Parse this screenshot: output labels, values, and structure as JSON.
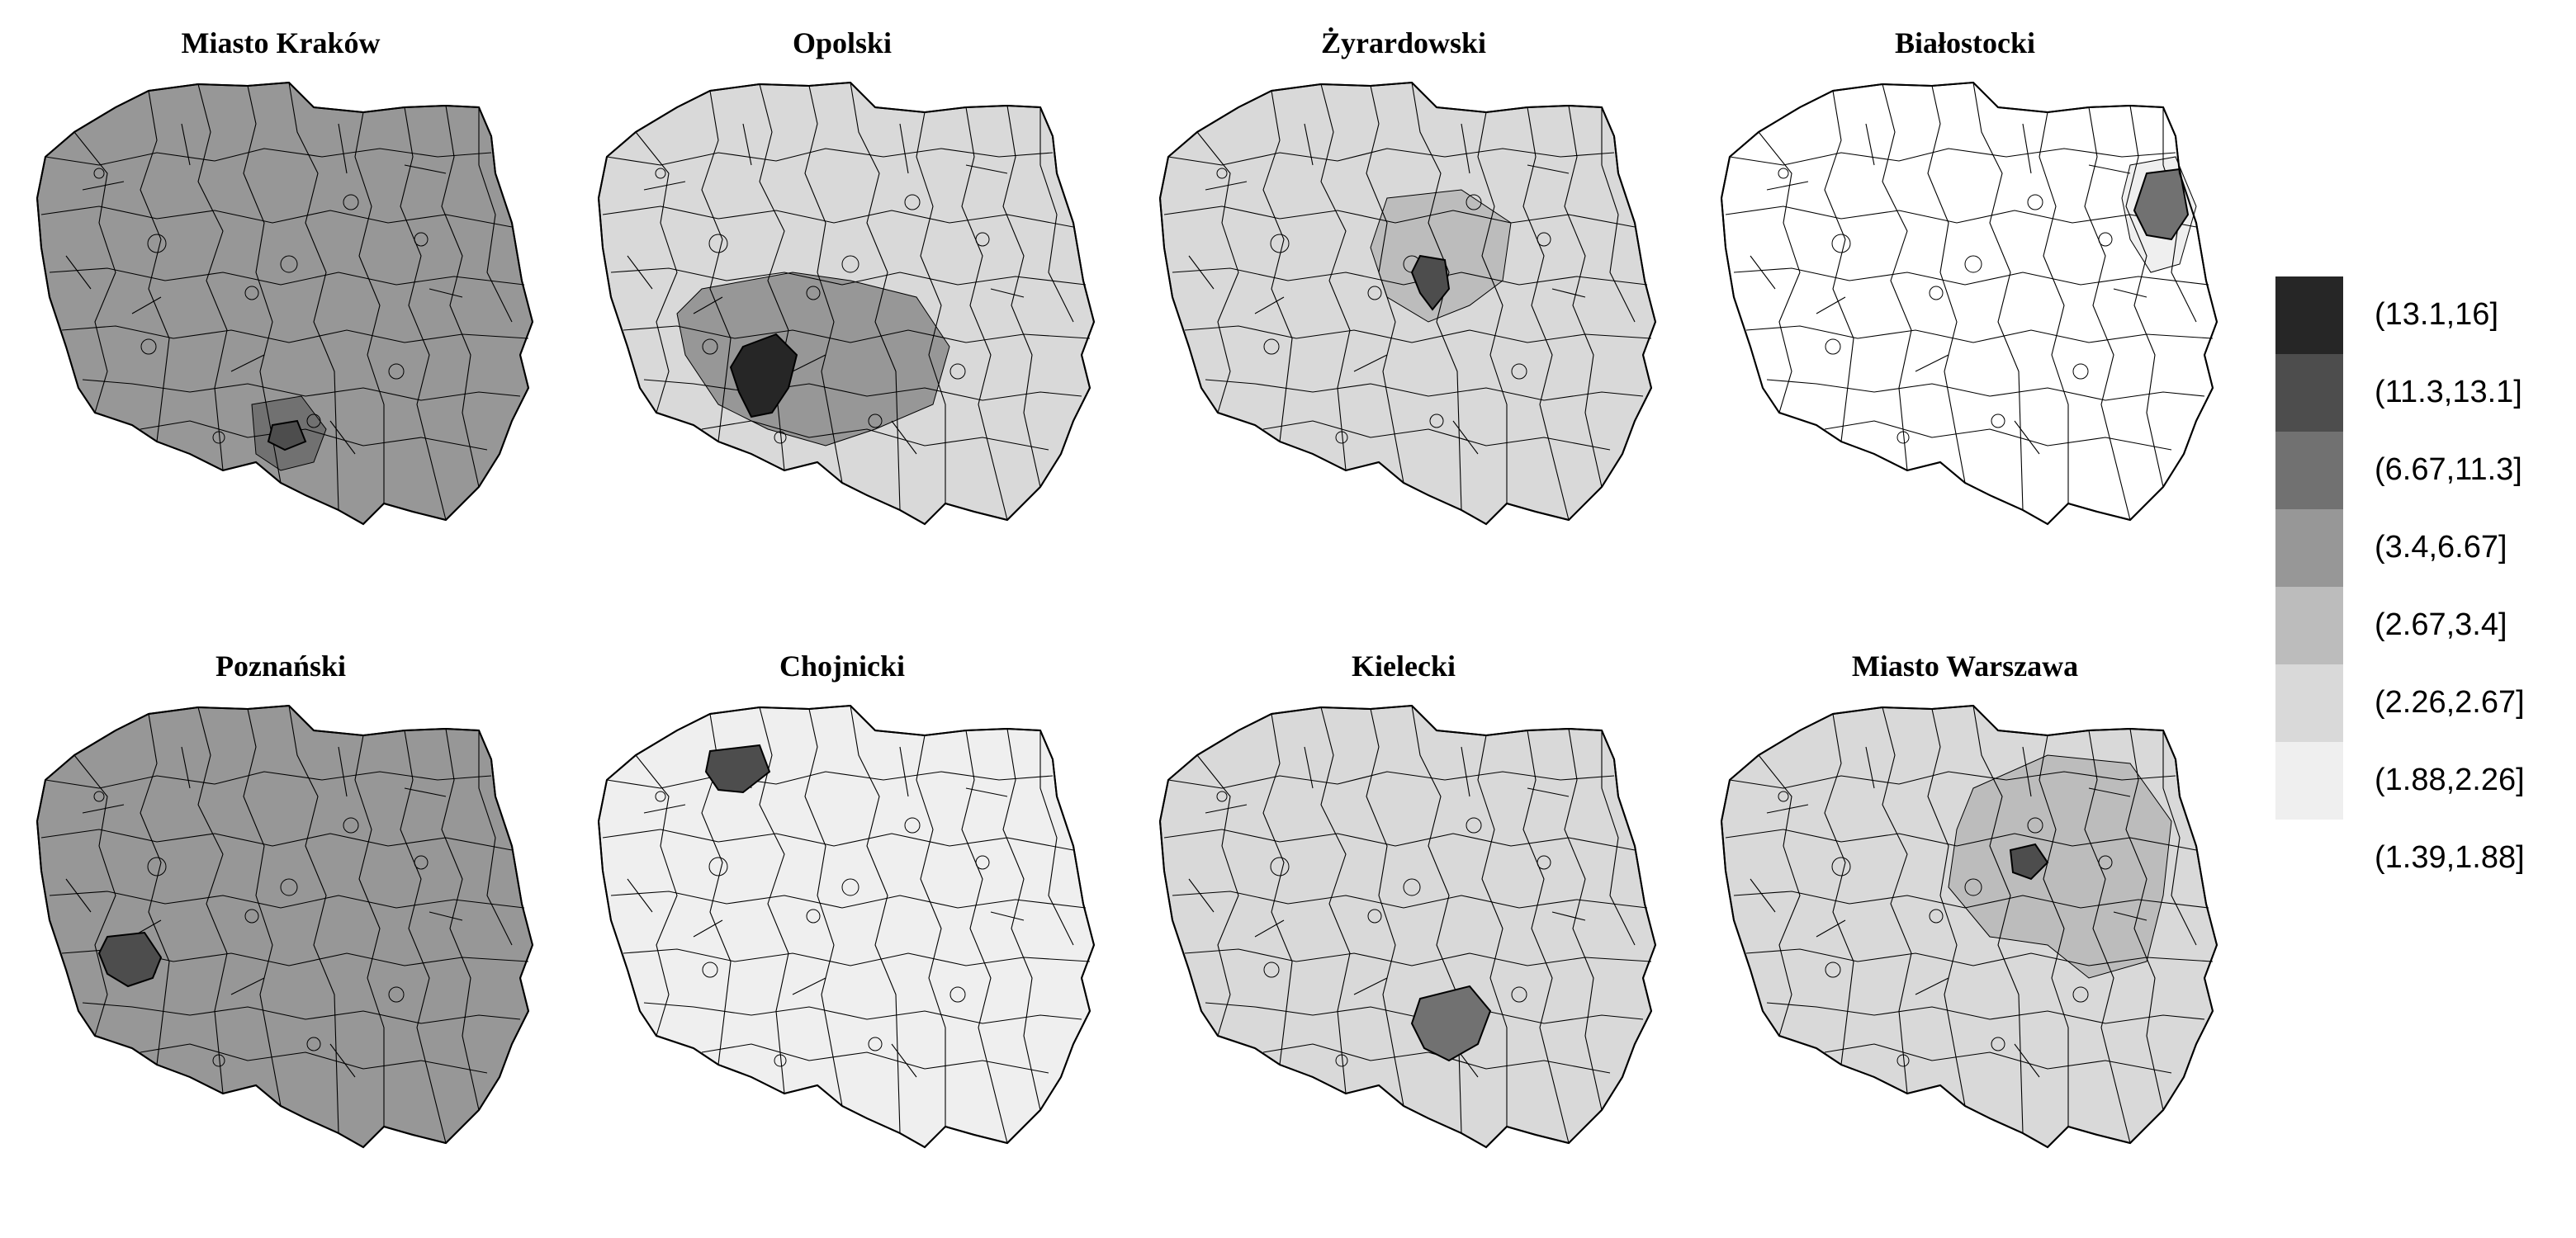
{
  "legend": {
    "classes": [
      {
        "label": "(13.1,16]",
        "color": "#262626"
      },
      {
        "label": "(11.3,13.1]",
        "color": "#4d4d4d"
      },
      {
        "label": "(6.67,11.3]",
        "color": "#717171"
      },
      {
        "label": "(3.4,6.67]",
        "color": "#979797"
      },
      {
        "label": "(2.67,3.4]",
        "color": "#bcbcbc"
      },
      {
        "label": "(2.26,2.67]",
        "color": "#d9d9d9"
      },
      {
        "label": "(1.88,2.26]",
        "color": "#efefef"
      },
      {
        "label": "(1.39,1.88]",
        "color": "#ffffff"
      }
    ]
  },
  "maps": [
    {
      "title": "Miasto Kraków",
      "highlight_region": "Miasto Kraków",
      "base_class": 3,
      "neighbor_class": 2,
      "highlight_class": 1,
      "highlight_location": "south"
    },
    {
      "title": "Opolski",
      "highlight_region": "Opolski",
      "base_class": 5,
      "neighbor_class": 3,
      "highlight_class": 0,
      "highlight_location": "southwest"
    },
    {
      "title": "Żyrardowski",
      "highlight_region": "Żyrardowski",
      "base_class": 5,
      "neighbor_class": 4,
      "highlight_class": 1,
      "highlight_location": "center"
    },
    {
      "title": "Białostocki",
      "highlight_region": "Białostocki",
      "base_class": 7,
      "neighbor_class": 6,
      "highlight_class": 2,
      "highlight_location": "northeast"
    },
    {
      "title": "Poznański",
      "highlight_region": "Poznański",
      "base_class": 3,
      "neighbor_class": 3,
      "highlight_class": 1,
      "highlight_location": "west"
    },
    {
      "title": "Chojnicki",
      "highlight_region": "Chojnicki",
      "base_class": 6,
      "neighbor_class": 6,
      "highlight_class": 1,
      "highlight_location": "north"
    },
    {
      "title": "Kielecki",
      "highlight_region": "Kielecki",
      "base_class": 5,
      "neighbor_class": 5,
      "highlight_class": 2,
      "highlight_location": "southeast"
    },
    {
      "title": "Miasto Warszawa",
      "highlight_region": "Miasto Warszawa",
      "base_class": 5,
      "neighbor_class": 4,
      "highlight_class": 1,
      "highlight_location": "east-center"
    }
  ]
}
